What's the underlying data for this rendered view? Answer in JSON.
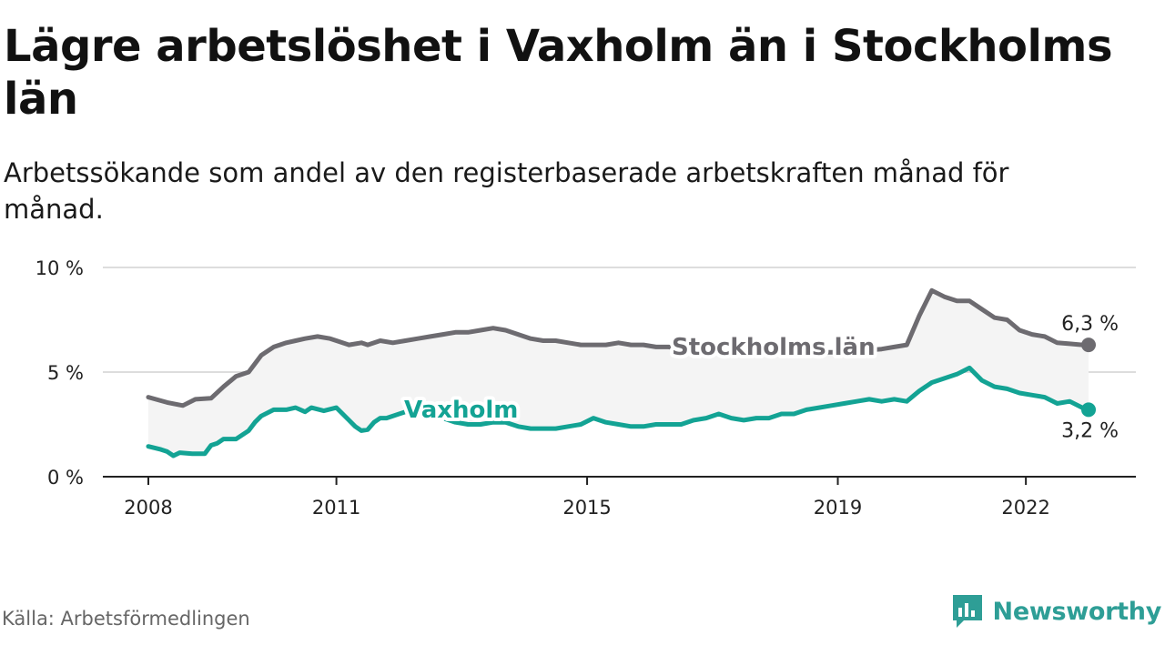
{
  "title": "Lägre arbetslöshet i Vaxholm än i Stockholms län",
  "subtitle": "Arbetssökande som andel av den registerbaserade arbetskraften månad för månad.",
  "source": "Källa: Arbetsförmedlingen",
  "brand": "Newsworthy",
  "colors": {
    "stockholm": "#6d6b70",
    "vaxholm": "#13a394",
    "area": "#f4f4f4",
    "grid": "#dddddd",
    "axis": "#222222",
    "brand": "#2e9e96"
  },
  "chart_data": {
    "type": "line",
    "title": "Lägre arbetslöshet i Vaxholm än i Stockholms län",
    "xlabel": "",
    "ylabel": "",
    "ylim": [
      0,
      10
    ],
    "xlim": [
      2008.0,
      2023.5
    ],
    "yticks": [
      0,
      5,
      10
    ],
    "ytick_labels": [
      "0 %",
      "5 %",
      "10 %"
    ],
    "xticks": [
      2008,
      2011,
      2015,
      2019,
      2022
    ],
    "xtick_labels": [
      "2008",
      "2011",
      "2015",
      "2019",
      "2022"
    ],
    "grid": true,
    "series": [
      {
        "name": "Stockholms län",
        "end_label": "6,3 %",
        "x": [
          2008.0,
          2008.3,
          2008.55,
          2008.75,
          2009.0,
          2009.2,
          2009.4,
          2009.6,
          2009.8,
          2010.0,
          2010.2,
          2010.35,
          2010.5,
          2010.7,
          2010.9,
          2011.0,
          2011.2,
          2011.4,
          2011.5,
          2011.7,
          2011.9,
          2012.1,
          2012.3,
          2012.5,
          2012.7,
          2012.9,
          2013.1,
          2013.3,
          2013.5,
          2013.7,
          2013.9,
          2014.1,
          2014.3,
          2014.5,
          2014.7,
          2014.9,
          2015.1,
          2015.3,
          2015.5,
          2015.7,
          2015.9,
          2016.1,
          2016.3,
          2016.5,
          2016.7,
          2016.9,
          2017.1,
          2017.3,
          2017.5,
          2017.7,
          2017.9,
          2018.1,
          2018.3,
          2018.5,
          2018.7,
          2018.9,
          2019.1,
          2019.3,
          2019.5,
          2019.7,
          2019.9,
          2020.1,
          2020.3,
          2020.5,
          2020.7,
          2020.9,
          2021.1,
          2021.3,
          2021.5,
          2021.7,
          2021.9,
          2022.1,
          2022.3,
          2022.5,
          2022.7,
          2022.9,
          2023.0
        ],
        "y": [
          3.8,
          3.55,
          3.4,
          3.7,
          3.75,
          4.3,
          4.8,
          5.0,
          5.8,
          6.2,
          6.4,
          6.5,
          6.6,
          6.7,
          6.6,
          6.5,
          6.3,
          6.4,
          6.3,
          6.5,
          6.4,
          6.5,
          6.6,
          6.7,
          6.8,
          6.9,
          6.9,
          7.0,
          7.1,
          7.0,
          6.8,
          6.6,
          6.5,
          6.5,
          6.4,
          6.3,
          6.3,
          6.3,
          6.4,
          6.3,
          6.3,
          6.2,
          6.2,
          6.1,
          6.1,
          6.1,
          6.1,
          6.1,
          6.0,
          6.0,
          6.0,
          5.95,
          5.95,
          5.95,
          5.95,
          5.95,
          5.95,
          5.95,
          6.05,
          6.1,
          6.2,
          6.3,
          7.7,
          8.9,
          8.6,
          8.4,
          8.4,
          8.0,
          7.6,
          7.5,
          7.0,
          6.8,
          6.7,
          6.4,
          6.35,
          6.3,
          6.3
        ]
      },
      {
        "name": "Vaxholm",
        "end_label": "3,2 %",
        "x": [
          2008.0,
          2008.2,
          2008.3,
          2008.4,
          2008.5,
          2008.7,
          2008.9,
          2009.0,
          2009.1,
          2009.2,
          2009.4,
          2009.6,
          2009.7,
          2009.8,
          2010.0,
          2010.2,
          2010.35,
          2010.5,
          2010.6,
          2010.8,
          2011.0,
          2011.1,
          2011.2,
          2011.3,
          2011.4,
          2011.5,
          2011.6,
          2011.7,
          2011.8,
          2012.0,
          2012.1,
          2012.3,
          2012.5,
          2012.7,
          2012.9,
          2013.1,
          2013.3,
          2013.5,
          2013.7,
          2013.9,
          2014.1,
          2014.3,
          2014.5,
          2014.7,
          2014.9,
          2015.1,
          2015.3,
          2015.5,
          2015.7,
          2015.9,
          2016.1,
          2016.3,
          2016.5,
          2016.7,
          2016.9,
          2017.1,
          2017.3,
          2017.5,
          2017.7,
          2017.9,
          2018.1,
          2018.3,
          2018.5,
          2018.7,
          2018.9,
          2019.1,
          2019.3,
          2019.5,
          2019.7,
          2019.9,
          2020.1,
          2020.3,
          2020.5,
          2020.7,
          2020.9,
          2021.1,
          2021.3,
          2021.5,
          2021.7,
          2021.9,
          2022.1,
          2022.3,
          2022.5,
          2022.7,
          2022.9,
          2023.0
        ],
        "y": [
          1.45,
          1.3,
          1.2,
          1.0,
          1.15,
          1.1,
          1.1,
          1.5,
          1.6,
          1.8,
          1.8,
          2.2,
          2.6,
          2.9,
          3.2,
          3.2,
          3.3,
          3.1,
          3.3,
          3.15,
          3.3,
          3.0,
          2.7,
          2.4,
          2.2,
          2.25,
          2.6,
          2.8,
          2.8,
          3.0,
          3.1,
          3.2,
          3.0,
          2.8,
          2.6,
          2.5,
          2.5,
          2.6,
          2.6,
          2.4,
          2.3,
          2.3,
          2.3,
          2.4,
          2.5,
          2.8,
          2.6,
          2.5,
          2.4,
          2.4,
          2.5,
          2.5,
          2.5,
          2.7,
          2.8,
          3.0,
          2.8,
          2.7,
          2.8,
          2.8,
          3.0,
          3.0,
          3.2,
          3.3,
          3.4,
          3.5,
          3.6,
          3.7,
          3.6,
          3.7,
          3.6,
          4.1,
          4.5,
          4.7,
          4.9,
          5.2,
          4.6,
          4.3,
          4.2,
          4.0,
          3.9,
          3.8,
          3.5,
          3.6,
          3.3,
          3.2
        ]
      }
    ]
  }
}
